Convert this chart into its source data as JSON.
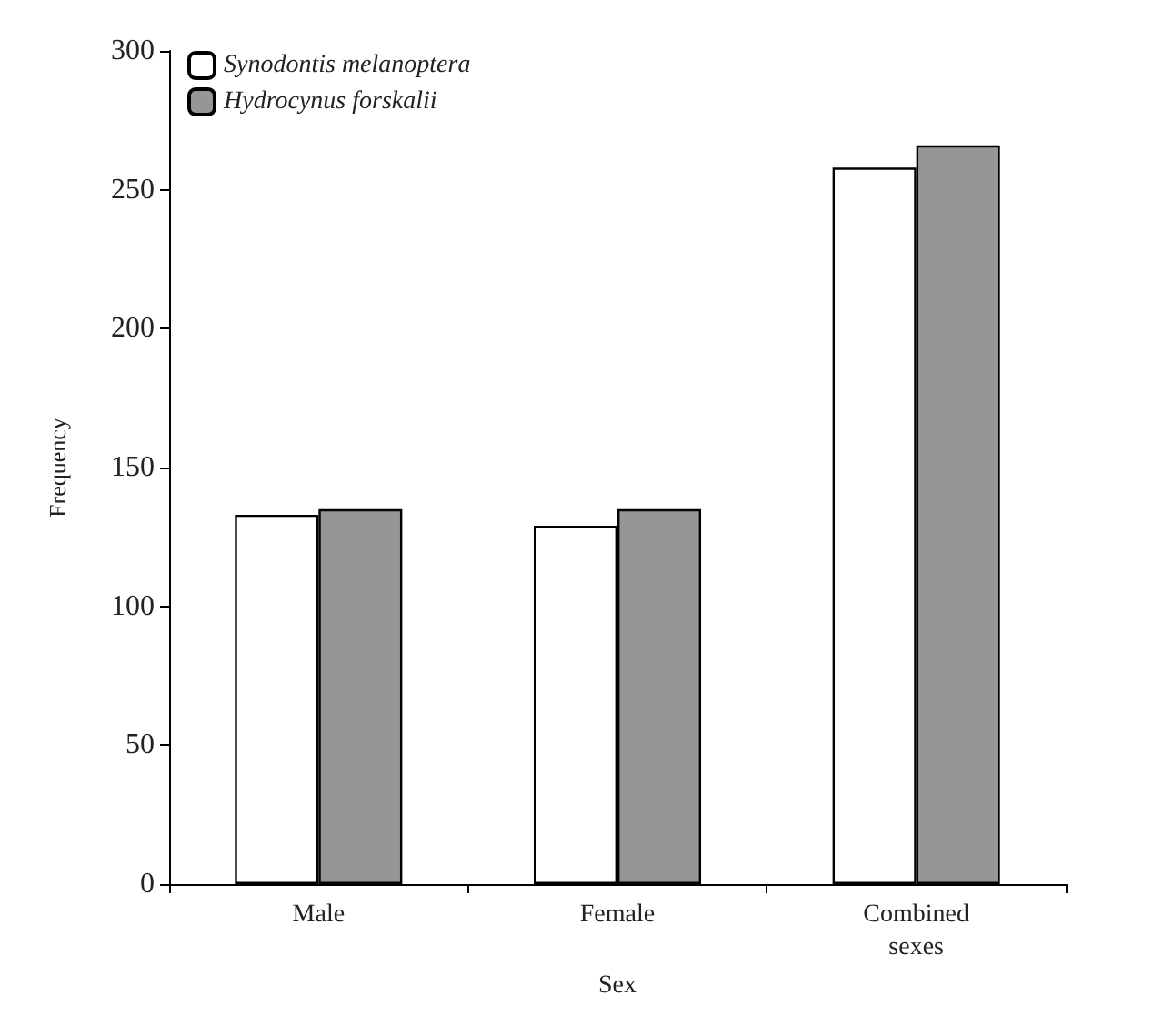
{
  "chart_data": {
    "type": "bar",
    "xlabel": "Sex",
    "ylabel": "Frequency",
    "categories": [
      "Male",
      "Female",
      "Combined\nsexes"
    ],
    "series": [
      {
        "name": "Synodontis melanoptera",
        "color": "#ffffff",
        "values": [
          133,
          129,
          258
        ]
      },
      {
        "name": "Hydrocynus forskalii",
        "color": "#969696",
        "values": [
          135,
          135,
          266
        ]
      }
    ],
    "ylim": [
      0,
      300
    ],
    "yticks": [
      0,
      50,
      100,
      150,
      200,
      250,
      300
    ],
    "grid": false,
    "legend": "top left"
  }
}
